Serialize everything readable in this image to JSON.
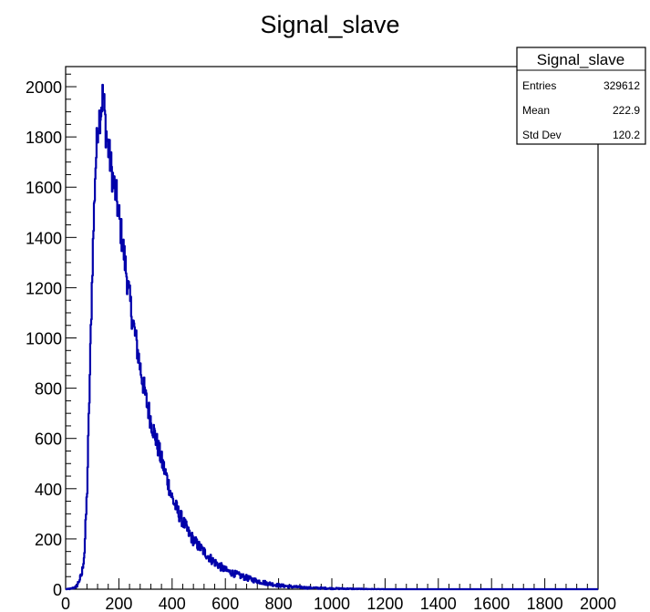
{
  "chart_data": {
    "type": "line",
    "title": "Signal_slave",
    "xlabel": "",
    "ylabel": "",
    "xlim": [
      0,
      2000
    ],
    "ylim": [
      0,
      2080
    ],
    "x_ticks": [
      0,
      200,
      400,
      600,
      800,
      1000,
      1200,
      1400,
      1600,
      1800,
      2000
    ],
    "y_ticks": [
      0,
      200,
      400,
      600,
      800,
      1000,
      1200,
      1400,
      1600,
      1800,
      2000
    ],
    "grid": false,
    "line_color": "#0000aa",
    "series": [
      {
        "x": [
          0,
          20,
          40,
          60,
          70,
          80,
          90,
          100,
          110,
          120,
          130,
          140,
          150,
          160,
          170,
          180,
          190,
          200,
          220,
          240,
          260,
          280,
          300,
          320,
          340,
          360,
          380,
          400,
          420,
          440,
          460,
          480,
          500,
          550,
          600,
          650,
          700,
          750,
          800,
          850,
          900,
          1000,
          1100,
          1200,
          1400,
          1600,
          1800,
          2000
        ],
        "values": [
          0,
          2,
          10,
          60,
          150,
          400,
          850,
          1300,
          1650,
          1850,
          1900,
          1975,
          1830,
          1750,
          1680,
          1610,
          1560,
          1480,
          1320,
          1150,
          1010,
          880,
          760,
          670,
          590,
          510,
          440,
          360,
          310,
          270,
          225,
          195,
          170,
          115,
          75,
          55,
          38,
          25,
          15,
          10,
          6,
          3,
          1,
          0,
          0,
          0,
          0,
          0
        ]
      }
    ]
  },
  "stats_box": {
    "title": "Signal_slave",
    "rows": [
      {
        "label": "Entries",
        "value": "329612"
      },
      {
        "label": "Mean",
        "value": "222.9"
      },
      {
        "label": "Std Dev",
        "value": "120.2"
      }
    ]
  }
}
